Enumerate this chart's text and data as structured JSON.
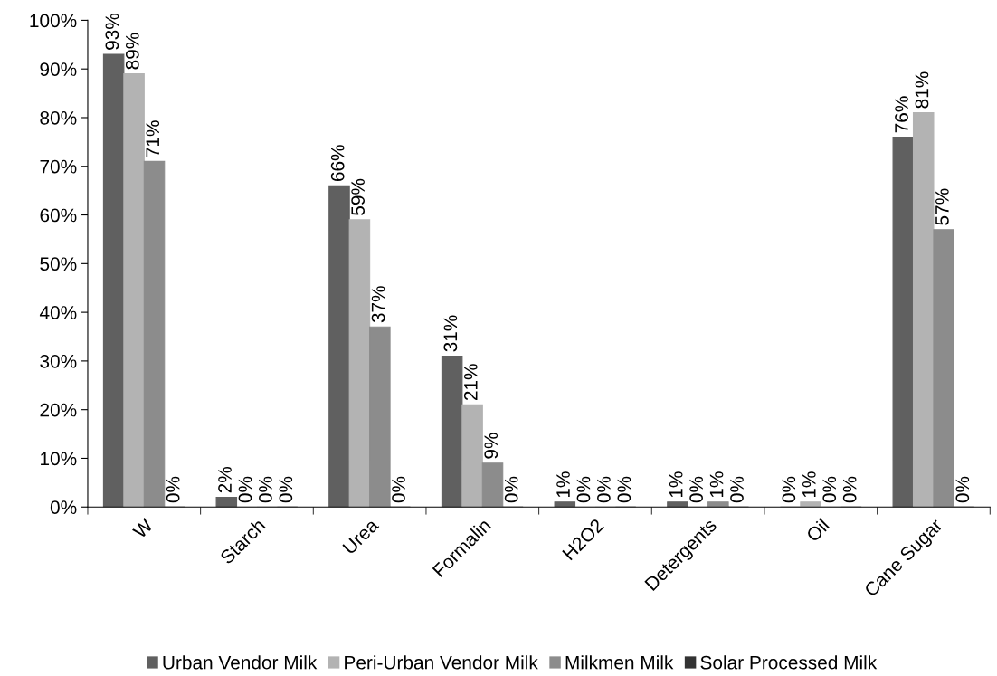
{
  "chart_data": {
    "type": "bar",
    "categories": [
      "W",
      "Starch",
      "Urea",
      "Formalin",
      "H2O2",
      "Detergents",
      "Oil",
      "Cane Sugar"
    ],
    "series": [
      {
        "name": "Urban Vendor Milk",
        "color": "#606060",
        "values": [
          93,
          2,
          66,
          31,
          1,
          1,
          0,
          76
        ],
        "value_labels": [
          "93%",
          "2%",
          "66%",
          "31%",
          "1%",
          "1%",
          "0%",
          "76%"
        ]
      },
      {
        "name": "Peri-Urban Vendor Milk",
        "color": "#b3b3b3",
        "values": [
          89,
          0,
          59,
          21,
          0,
          0,
          1,
          81
        ],
        "value_labels": [
          "89%",
          "0%",
          "59%",
          "21%",
          "0%",
          "0%",
          "1%",
          "81%"
        ]
      },
      {
        "name": "Milkmen Milk",
        "color": "#8c8c8c",
        "values": [
          71,
          0,
          37,
          9,
          0,
          1,
          0,
          57
        ],
        "value_labels": [
          "71%",
          "0%",
          "37%",
          "9%",
          "0%",
          "1%",
          "0%",
          "57%"
        ]
      },
      {
        "name": "Solar Processed Milk",
        "color": "#333333",
        "values": [
          0,
          0,
          0,
          0,
          0,
          0,
          0,
          0
        ],
        "value_labels": [
          "0%",
          "0%",
          "0%",
          "0%",
          "0%",
          "0%",
          "0%",
          "0%"
        ]
      }
    ],
    "ylim": [
      0,
      100
    ],
    "yticks": [
      {
        "value": 0,
        "label": "0%"
      },
      {
        "value": 10,
        "label": "10%"
      },
      {
        "value": 20,
        "label": "20%"
      },
      {
        "value": 30,
        "label": "30%"
      },
      {
        "value": 40,
        "label": "40%"
      },
      {
        "value": 50,
        "label": "50%"
      },
      {
        "value": 60,
        "label": "60%"
      },
      {
        "value": 70,
        "label": "70%"
      },
      {
        "value": 80,
        "label": "80%"
      },
      {
        "value": 90,
        "label": "90%"
      },
      {
        "value": 100,
        "label": "100%"
      }
    ],
    "grid": false,
    "legend": "bottom"
  }
}
